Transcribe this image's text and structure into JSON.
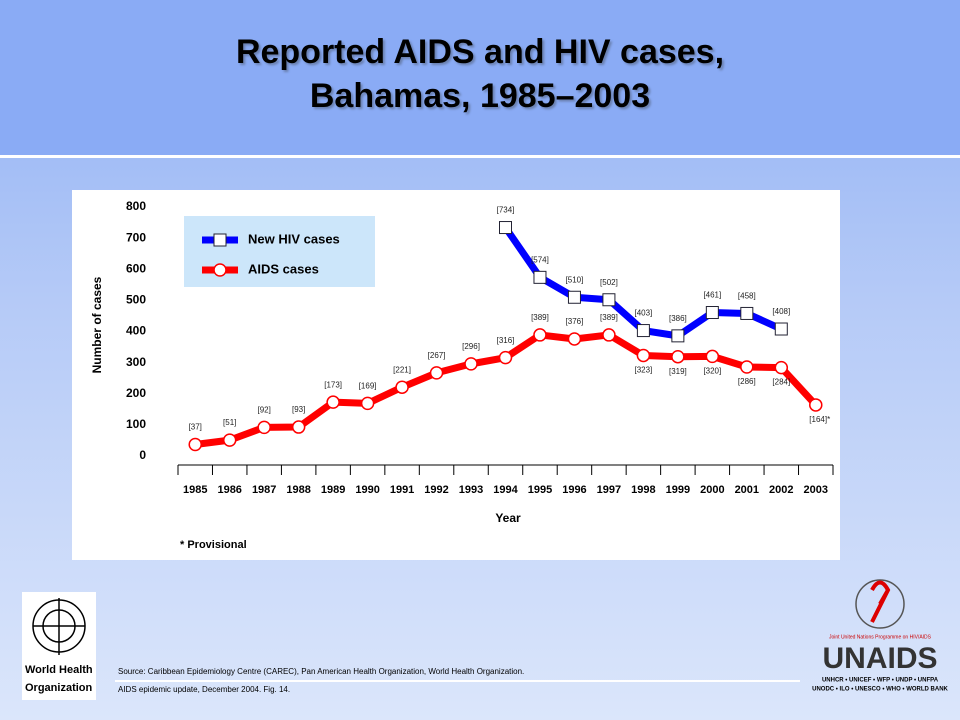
{
  "chart_data": {
    "type": "line",
    "title": "Reported AIDS and HIV cases, Bahamas, 1985–2003",
    "x_label": "Year",
    "y_label": "Number of cases",
    "note": "* Provisional",
    "categories": [
      "1985",
      "1986",
      "1987",
      "1988",
      "1989",
      "1990",
      "1991",
      "1992",
      "1993",
      "1994",
      "1995",
      "1996",
      "1997",
      "1998",
      "1999",
      "2000",
      "2001",
      "2002",
      "2003"
    ],
    "ylim": [
      0,
      800
    ],
    "yticks": [
      0,
      100,
      200,
      300,
      400,
      500,
      600,
      700,
      800
    ],
    "legend": "top-left",
    "series": [
      {
        "name": "New HIV cases",
        "color": "#0000ff",
        "marker": "square",
        "values": [
          null,
          null,
          null,
          null,
          null,
          null,
          null,
          null,
          null,
          734,
          574,
          510,
          502,
          403,
          386,
          461,
          458,
          408,
          null
        ],
        "value_labels": [
          null,
          null,
          null,
          null,
          null,
          null,
          null,
          null,
          null,
          "[734]",
          "[574]",
          "[510]",
          "[502]",
          "[403]",
          "[386]",
          "[461]",
          "[458]",
          "[408]",
          null
        ]
      },
      {
        "name": "AIDS cases",
        "color": "#ff0000",
        "marker": "circle",
        "values": [
          37,
          51,
          92,
          93,
          173,
          169,
          221,
          267,
          296,
          316,
          389,
          376,
          389,
          323,
          319,
          320,
          286,
          284,
          164
        ],
        "value_labels": [
          "[37]",
          "[51]",
          "[92]",
          "[93]",
          "[173]",
          "[169]",
          "[221]",
          "[267]",
          "[296]",
          "[316]",
          "[389]",
          "[376]",
          "[389]",
          "[323]",
          "[319]",
          "[320]",
          "[286]",
          "[284]",
          "[164]*"
        ]
      }
    ]
  },
  "source": {
    "line1": "Source:   Caribbean Epidemiology Centre (CAREC), Pan American Health Organization, World Health Organization.",
    "line2": "AIDS epidemic update, December 2004.  Fig. 14."
  },
  "logos": {
    "who_line1": "World Health",
    "who_line2": "Organization",
    "unaids_tagline": "Joint United Nations Programme on HIV/AIDS",
    "unaids": "UNAIDS",
    "unaids_line1": "UNHCR • UNICEF • WFP • UNDP • UNFPA",
    "unaids_line2": "UNODC • ILO • UNESCO • WHO • WORLD BANK"
  }
}
